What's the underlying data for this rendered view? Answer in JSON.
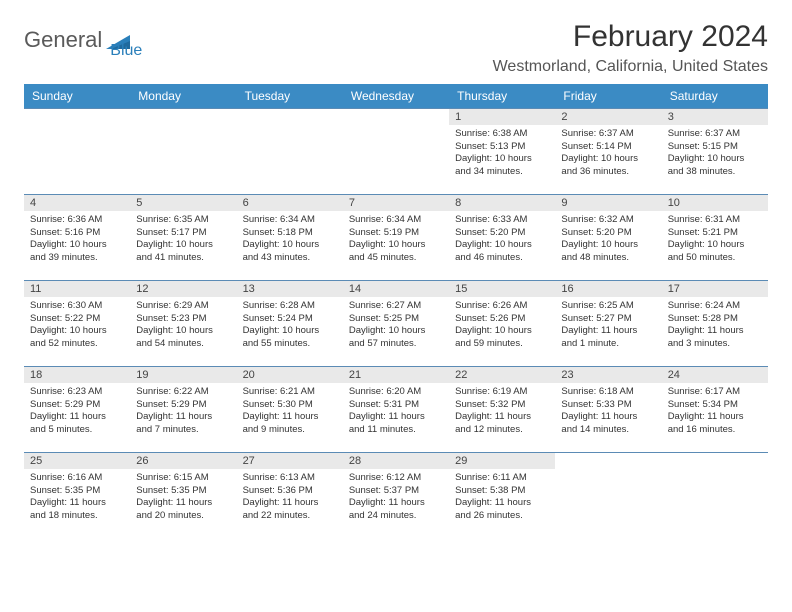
{
  "logo": {
    "text1": "General",
    "text2": "Blue"
  },
  "title": "February 2024",
  "location": "Westmorland, California, United States",
  "colors": {
    "header_bg": "#3b8bc4",
    "header_text": "#ffffff",
    "daynum_bg": "#e9e9e9",
    "border": "#5b8bb5",
    "logo_gray": "#5a5a5a",
    "logo_blue": "#2a7fba"
  },
  "day_headers": [
    "Sunday",
    "Monday",
    "Tuesday",
    "Wednesday",
    "Thursday",
    "Friday",
    "Saturday"
  ],
  "weeks": [
    [
      null,
      null,
      null,
      null,
      {
        "n": "1",
        "sr": "Sunrise: 6:38 AM",
        "ss": "Sunset: 5:13 PM",
        "dl": "Daylight: 10 hours and 34 minutes."
      },
      {
        "n": "2",
        "sr": "Sunrise: 6:37 AM",
        "ss": "Sunset: 5:14 PM",
        "dl": "Daylight: 10 hours and 36 minutes."
      },
      {
        "n": "3",
        "sr": "Sunrise: 6:37 AM",
        "ss": "Sunset: 5:15 PM",
        "dl": "Daylight: 10 hours and 38 minutes."
      }
    ],
    [
      {
        "n": "4",
        "sr": "Sunrise: 6:36 AM",
        "ss": "Sunset: 5:16 PM",
        "dl": "Daylight: 10 hours and 39 minutes."
      },
      {
        "n": "5",
        "sr": "Sunrise: 6:35 AM",
        "ss": "Sunset: 5:17 PM",
        "dl": "Daylight: 10 hours and 41 minutes."
      },
      {
        "n": "6",
        "sr": "Sunrise: 6:34 AM",
        "ss": "Sunset: 5:18 PM",
        "dl": "Daylight: 10 hours and 43 minutes."
      },
      {
        "n": "7",
        "sr": "Sunrise: 6:34 AM",
        "ss": "Sunset: 5:19 PM",
        "dl": "Daylight: 10 hours and 45 minutes."
      },
      {
        "n": "8",
        "sr": "Sunrise: 6:33 AM",
        "ss": "Sunset: 5:20 PM",
        "dl": "Daylight: 10 hours and 46 minutes."
      },
      {
        "n": "9",
        "sr": "Sunrise: 6:32 AM",
        "ss": "Sunset: 5:20 PM",
        "dl": "Daylight: 10 hours and 48 minutes."
      },
      {
        "n": "10",
        "sr": "Sunrise: 6:31 AM",
        "ss": "Sunset: 5:21 PM",
        "dl": "Daylight: 10 hours and 50 minutes."
      }
    ],
    [
      {
        "n": "11",
        "sr": "Sunrise: 6:30 AM",
        "ss": "Sunset: 5:22 PM",
        "dl": "Daylight: 10 hours and 52 minutes."
      },
      {
        "n": "12",
        "sr": "Sunrise: 6:29 AM",
        "ss": "Sunset: 5:23 PM",
        "dl": "Daylight: 10 hours and 54 minutes."
      },
      {
        "n": "13",
        "sr": "Sunrise: 6:28 AM",
        "ss": "Sunset: 5:24 PM",
        "dl": "Daylight: 10 hours and 55 minutes."
      },
      {
        "n": "14",
        "sr": "Sunrise: 6:27 AM",
        "ss": "Sunset: 5:25 PM",
        "dl": "Daylight: 10 hours and 57 minutes."
      },
      {
        "n": "15",
        "sr": "Sunrise: 6:26 AM",
        "ss": "Sunset: 5:26 PM",
        "dl": "Daylight: 10 hours and 59 minutes."
      },
      {
        "n": "16",
        "sr": "Sunrise: 6:25 AM",
        "ss": "Sunset: 5:27 PM",
        "dl": "Daylight: 11 hours and 1 minute."
      },
      {
        "n": "17",
        "sr": "Sunrise: 6:24 AM",
        "ss": "Sunset: 5:28 PM",
        "dl": "Daylight: 11 hours and 3 minutes."
      }
    ],
    [
      {
        "n": "18",
        "sr": "Sunrise: 6:23 AM",
        "ss": "Sunset: 5:29 PM",
        "dl": "Daylight: 11 hours and 5 minutes."
      },
      {
        "n": "19",
        "sr": "Sunrise: 6:22 AM",
        "ss": "Sunset: 5:29 PM",
        "dl": "Daylight: 11 hours and 7 minutes."
      },
      {
        "n": "20",
        "sr": "Sunrise: 6:21 AM",
        "ss": "Sunset: 5:30 PM",
        "dl": "Daylight: 11 hours and 9 minutes."
      },
      {
        "n": "21",
        "sr": "Sunrise: 6:20 AM",
        "ss": "Sunset: 5:31 PM",
        "dl": "Daylight: 11 hours and 11 minutes."
      },
      {
        "n": "22",
        "sr": "Sunrise: 6:19 AM",
        "ss": "Sunset: 5:32 PM",
        "dl": "Daylight: 11 hours and 12 minutes."
      },
      {
        "n": "23",
        "sr": "Sunrise: 6:18 AM",
        "ss": "Sunset: 5:33 PM",
        "dl": "Daylight: 11 hours and 14 minutes."
      },
      {
        "n": "24",
        "sr": "Sunrise: 6:17 AM",
        "ss": "Sunset: 5:34 PM",
        "dl": "Daylight: 11 hours and 16 minutes."
      }
    ],
    [
      {
        "n": "25",
        "sr": "Sunrise: 6:16 AM",
        "ss": "Sunset: 5:35 PM",
        "dl": "Daylight: 11 hours and 18 minutes."
      },
      {
        "n": "26",
        "sr": "Sunrise: 6:15 AM",
        "ss": "Sunset: 5:35 PM",
        "dl": "Daylight: 11 hours and 20 minutes."
      },
      {
        "n": "27",
        "sr": "Sunrise: 6:13 AM",
        "ss": "Sunset: 5:36 PM",
        "dl": "Daylight: 11 hours and 22 minutes."
      },
      {
        "n": "28",
        "sr": "Sunrise: 6:12 AM",
        "ss": "Sunset: 5:37 PM",
        "dl": "Daylight: 11 hours and 24 minutes."
      },
      {
        "n": "29",
        "sr": "Sunrise: 6:11 AM",
        "ss": "Sunset: 5:38 PM",
        "dl": "Daylight: 11 hours and 26 minutes."
      },
      null,
      null
    ]
  ]
}
